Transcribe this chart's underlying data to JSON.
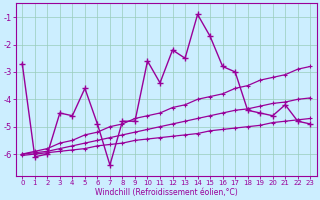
{
  "xlabel": "Windchill (Refroidissement éolien,°C)",
  "x": [
    0,
    1,
    2,
    3,
    4,
    5,
    6,
    7,
    8,
    9,
    10,
    11,
    12,
    13,
    14,
    15,
    16,
    17,
    18,
    19,
    20,
    21,
    22,
    23
  ],
  "line1": [
    -2.7,
    -6.1,
    -6.0,
    -4.5,
    -4.6,
    -3.6,
    -4.9,
    -6.4,
    -4.8,
    -4.8,
    -2.6,
    -3.4,
    -2.2,
    -2.5,
    -0.9,
    -1.7,
    -2.8,
    -3.0,
    -4.4,
    -4.5,
    -4.6,
    -4.2,
    -4.8,
    -4.9
  ],
  "line2": [
    -6.0,
    -5.9,
    -5.8,
    -5.6,
    -5.5,
    -5.3,
    -5.2,
    -5.0,
    -4.9,
    -4.7,
    -4.6,
    -4.5,
    -4.3,
    -4.2,
    -4.0,
    -3.9,
    -3.8,
    -3.6,
    -3.5,
    -3.3,
    -3.2,
    -3.1,
    -2.9,
    -2.8
  ],
  "line3": [
    -6.0,
    -5.95,
    -5.9,
    -5.8,
    -5.7,
    -5.6,
    -5.5,
    -5.4,
    -5.3,
    -5.2,
    -5.1,
    -5.0,
    -4.9,
    -4.8,
    -4.7,
    -4.6,
    -4.5,
    -4.4,
    -4.35,
    -4.25,
    -4.15,
    -4.1,
    -4.0,
    -3.95
  ],
  "line4": [
    -6.05,
    -6.0,
    -5.95,
    -5.9,
    -5.85,
    -5.8,
    -5.7,
    -5.65,
    -5.6,
    -5.5,
    -5.45,
    -5.4,
    -5.35,
    -5.3,
    -5.25,
    -5.15,
    -5.1,
    -5.05,
    -5.0,
    -4.95,
    -4.85,
    -4.8,
    -4.75,
    -4.7
  ],
  "line_color": "#990099",
  "bg_color": "#cceeff",
  "grid_color": "#99ccbb",
  "ylim": [
    -6.8,
    -0.5
  ],
  "yticks": [
    -6,
    -5,
    -4,
    -3,
    -2,
    -1
  ],
  "xlim": [
    -0.5,
    23.5
  ]
}
